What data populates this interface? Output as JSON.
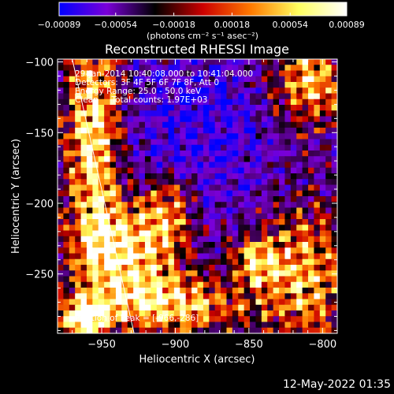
{
  "chart_data": {
    "type": "heatmap",
    "title": "Reconstructed RHESSI Image",
    "xlabel": "Heliocentric X (arcsec)",
    "ylabel": "Heliocentric Y (arcsec)",
    "xlim": [
      -980,
      -790
    ],
    "ylim": [
      -292,
      -98
    ],
    "x_ticks": [
      -950,
      -900,
      -850,
      -800
    ],
    "x_tick_labels": [
      "−950",
      "−900",
      "−850",
      "−800"
    ],
    "y_ticks": [
      -100,
      -150,
      -200,
      -250
    ],
    "y_tick_labels": [
      "−100",
      "−150",
      "−200",
      "−250"
    ],
    "colorbar": {
      "range": [
        -0.00089,
        0.00089
      ],
      "ticks": [
        -0.00089,
        -0.00054,
        -0.00018,
        0.00018,
        0.00054,
        0.00089
      ],
      "tick_labels": [
        "−0.00089",
        "−0.00054",
        "−0.00018",
        "0.00018",
        "0.00054",
        "0.00089"
      ],
      "unit_label": "(photons cm⁻² s⁻¹ asec⁻²)",
      "colors": [
        "#0000ff",
        "#7a00d8",
        "#000000",
        "#cc0000",
        "#ff7a00",
        "#ffff60",
        "#ffffff"
      ]
    },
    "annotations": [
      "29-Jan-2014 10:40:08.000 to 10:41:04.000",
      "Detectors: 3F 4F 5F 6F 7F 8F, Att 0",
      "Energy Range: 25.0 - 50.0 keV",
      "Clean     Total counts: 1.97E+03"
    ],
    "peak_label": "Position of Peak = [-966,-286]",
    "peak": [
      -966,
      -286
    ],
    "limb_line": [
      [
        -970,
        -98
      ],
      [
        -928,
        -292
      ]
    ]
  },
  "timestamp": "12-May-2022 01:35"
}
